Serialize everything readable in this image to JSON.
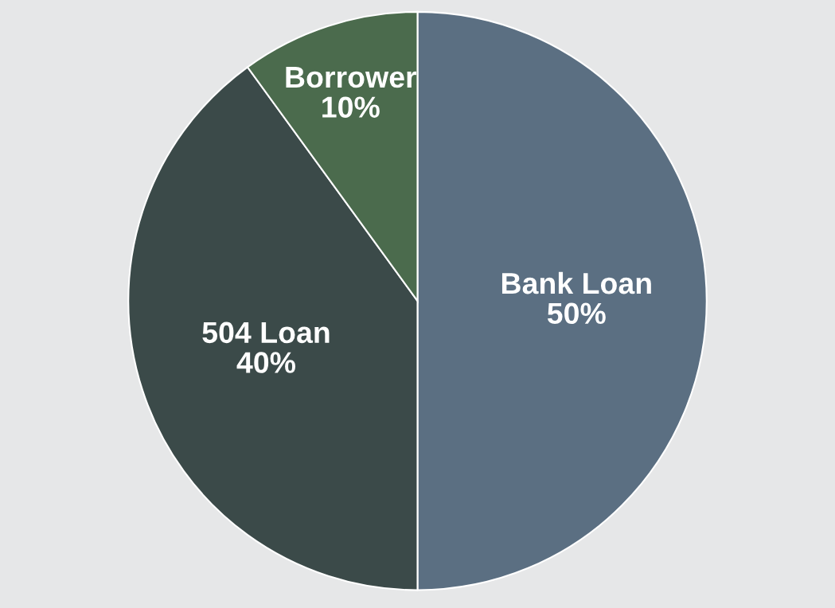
{
  "chart_data": {
    "type": "pie",
    "categories": [
      "Bank Loan",
      "504 Loan",
      "Borrower"
    ],
    "values": [
      50,
      40,
      10
    ],
    "value_labels": [
      "50%",
      "40%",
      "10%"
    ],
    "colors": [
      "#5b6f82",
      "#3b4a49",
      "#4b6b4d"
    ]
  }
}
